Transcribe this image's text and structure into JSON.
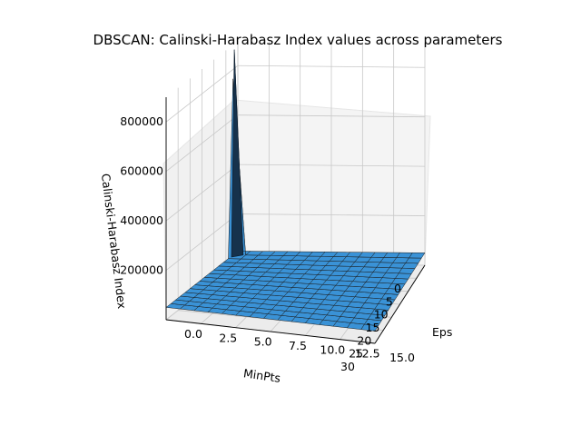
{
  "chart_data": {
    "type": "surface3d",
    "title": "DBSCAN: Calinski-Harabasz Index values across parameters",
    "xlabel": "MinPts",
    "ylabel": "Eps",
    "zlabel": "Calinski-Harabasz Index",
    "x_ticks": [
      "0",
      "5",
      "10",
      "15",
      "20",
      "25",
      "30"
    ],
    "y_ticks": [
      "0.0",
      "2.5",
      "5.0",
      "7.5",
      "10.0",
      "12.5",
      "15.0"
    ],
    "z_ticks": [
      "200000",
      "400000",
      "600000",
      "800000"
    ],
    "xlim": [
      0,
      30
    ],
    "ylim": [
      0,
      15
    ],
    "zlim": [
      0,
      900000
    ],
    "grid": true,
    "surface_color": "#3a92d6",
    "edge_color": "#1a1a1a",
    "peak": {
      "minpts": 2,
      "eps": 0.1,
      "value": 880000
    },
    "baseline_value": 50000
  }
}
